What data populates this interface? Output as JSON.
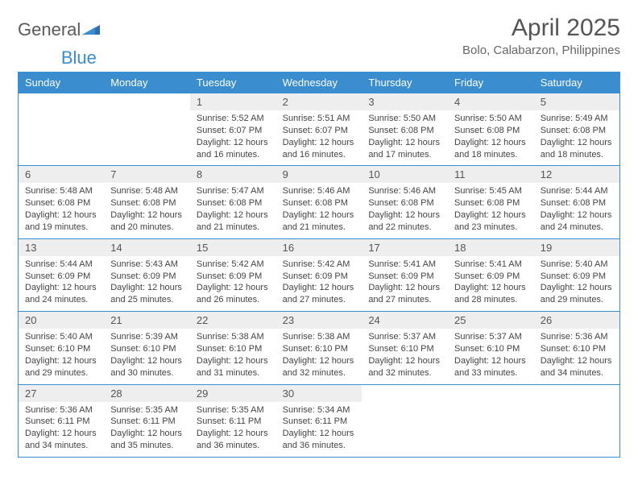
{
  "logo": {
    "word1": "General",
    "word2": "Blue"
  },
  "title": "April 2025",
  "location": "Bolo, Calabarzon, Philippines",
  "colors": {
    "header_bg": "#3a8dce",
    "header_fg": "#ffffff",
    "cell_border": "#3a8dce",
    "daynum_bg": "#eeeeee",
    "text": "#444444"
  },
  "weekdays": [
    "Sunday",
    "Monday",
    "Tuesday",
    "Wednesday",
    "Thursday",
    "Friday",
    "Saturday"
  ],
  "weeks": [
    [
      null,
      null,
      {
        "n": "1",
        "sunrise": "5:52 AM",
        "sunset": "6:07 PM",
        "daylight": "12 hours and 16 minutes."
      },
      {
        "n": "2",
        "sunrise": "5:51 AM",
        "sunset": "6:07 PM",
        "daylight": "12 hours and 16 minutes."
      },
      {
        "n": "3",
        "sunrise": "5:50 AM",
        "sunset": "6:08 PM",
        "daylight": "12 hours and 17 minutes."
      },
      {
        "n": "4",
        "sunrise": "5:50 AM",
        "sunset": "6:08 PM",
        "daylight": "12 hours and 18 minutes."
      },
      {
        "n": "5",
        "sunrise": "5:49 AM",
        "sunset": "6:08 PM",
        "daylight": "12 hours and 18 minutes."
      }
    ],
    [
      {
        "n": "6",
        "sunrise": "5:48 AM",
        "sunset": "6:08 PM",
        "daylight": "12 hours and 19 minutes."
      },
      {
        "n": "7",
        "sunrise": "5:48 AM",
        "sunset": "6:08 PM",
        "daylight": "12 hours and 20 minutes."
      },
      {
        "n": "8",
        "sunrise": "5:47 AM",
        "sunset": "6:08 PM",
        "daylight": "12 hours and 21 minutes."
      },
      {
        "n": "9",
        "sunrise": "5:46 AM",
        "sunset": "6:08 PM",
        "daylight": "12 hours and 21 minutes."
      },
      {
        "n": "10",
        "sunrise": "5:46 AM",
        "sunset": "6:08 PM",
        "daylight": "12 hours and 22 minutes."
      },
      {
        "n": "11",
        "sunrise": "5:45 AM",
        "sunset": "6:08 PM",
        "daylight": "12 hours and 23 minutes."
      },
      {
        "n": "12",
        "sunrise": "5:44 AM",
        "sunset": "6:08 PM",
        "daylight": "12 hours and 24 minutes."
      }
    ],
    [
      {
        "n": "13",
        "sunrise": "5:44 AM",
        "sunset": "6:09 PM",
        "daylight": "12 hours and 24 minutes."
      },
      {
        "n": "14",
        "sunrise": "5:43 AM",
        "sunset": "6:09 PM",
        "daylight": "12 hours and 25 minutes."
      },
      {
        "n": "15",
        "sunrise": "5:42 AM",
        "sunset": "6:09 PM",
        "daylight": "12 hours and 26 minutes."
      },
      {
        "n": "16",
        "sunrise": "5:42 AM",
        "sunset": "6:09 PM",
        "daylight": "12 hours and 27 minutes."
      },
      {
        "n": "17",
        "sunrise": "5:41 AM",
        "sunset": "6:09 PM",
        "daylight": "12 hours and 27 minutes."
      },
      {
        "n": "18",
        "sunrise": "5:41 AM",
        "sunset": "6:09 PM",
        "daylight": "12 hours and 28 minutes."
      },
      {
        "n": "19",
        "sunrise": "5:40 AM",
        "sunset": "6:09 PM",
        "daylight": "12 hours and 29 minutes."
      }
    ],
    [
      {
        "n": "20",
        "sunrise": "5:40 AM",
        "sunset": "6:10 PM",
        "daylight": "12 hours and 29 minutes."
      },
      {
        "n": "21",
        "sunrise": "5:39 AM",
        "sunset": "6:10 PM",
        "daylight": "12 hours and 30 minutes."
      },
      {
        "n": "22",
        "sunrise": "5:38 AM",
        "sunset": "6:10 PM",
        "daylight": "12 hours and 31 minutes."
      },
      {
        "n": "23",
        "sunrise": "5:38 AM",
        "sunset": "6:10 PM",
        "daylight": "12 hours and 32 minutes."
      },
      {
        "n": "24",
        "sunrise": "5:37 AM",
        "sunset": "6:10 PM",
        "daylight": "12 hours and 32 minutes."
      },
      {
        "n": "25",
        "sunrise": "5:37 AM",
        "sunset": "6:10 PM",
        "daylight": "12 hours and 33 minutes."
      },
      {
        "n": "26",
        "sunrise": "5:36 AM",
        "sunset": "6:10 PM",
        "daylight": "12 hours and 34 minutes."
      }
    ],
    [
      {
        "n": "27",
        "sunrise": "5:36 AM",
        "sunset": "6:11 PM",
        "daylight": "12 hours and 34 minutes."
      },
      {
        "n": "28",
        "sunrise": "5:35 AM",
        "sunset": "6:11 PM",
        "daylight": "12 hours and 35 minutes."
      },
      {
        "n": "29",
        "sunrise": "5:35 AM",
        "sunset": "6:11 PM",
        "daylight": "12 hours and 36 minutes."
      },
      {
        "n": "30",
        "sunrise": "5:34 AM",
        "sunset": "6:11 PM",
        "daylight": "12 hours and 36 minutes."
      },
      null,
      null,
      null
    ]
  ],
  "labels": {
    "sunrise": "Sunrise:",
    "sunset": "Sunset:",
    "daylight": "Daylight:"
  }
}
